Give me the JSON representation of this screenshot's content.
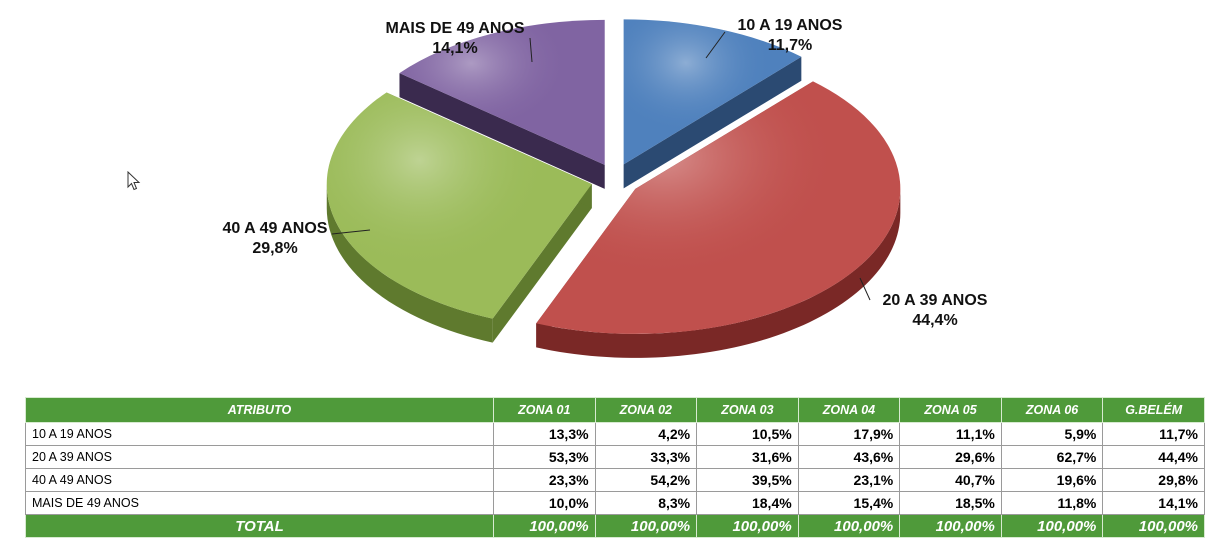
{
  "chart_data": {
    "type": "pie",
    "title": "",
    "slices": [
      {
        "label": "10 A 19 ANOS",
        "value": 11.7,
        "value_label": "11,7%",
        "color": "#4f81bd",
        "side": "#2b4a72"
      },
      {
        "label": "20 A 39 ANOS",
        "value": 44.4,
        "value_label": "44,4%",
        "color": "#c0504d",
        "side": "#7a2826"
      },
      {
        "label": "40 A 49 ANOS",
        "value": 29.8,
        "value_label": "29,8%",
        "color": "#9bbb59",
        "side": "#5f7a2e"
      },
      {
        "label": "MAIS DE 49 ANOS",
        "value": 14.1,
        "value_label": "14,1%",
        "color": "#8064a2",
        "side": "#3a2a4e"
      }
    ]
  },
  "table": {
    "headers": [
      "ATRIBUTO",
      "ZONA 01",
      "ZONA 02",
      "ZONA 03",
      "ZONA 04",
      "ZONA 05",
      "ZONA 06",
      "G.BELÉM"
    ],
    "rows": [
      {
        "label": "10 A 19 ANOS",
        "values": [
          "13,3%",
          "4,2%",
          "10,5%",
          "17,9%",
          "11,1%",
          "5,9%",
          "11,7%"
        ]
      },
      {
        "label": "20 A 39 ANOS",
        "values": [
          "53,3%",
          "33,3%",
          "31,6%",
          "43,6%",
          "29,6%",
          "62,7%",
          "44,4%"
        ]
      },
      {
        "label": "40 A 49 ANOS",
        "values": [
          "23,3%",
          "54,2%",
          "39,5%",
          "23,1%",
          "40,7%",
          "19,6%",
          "29,8%"
        ]
      },
      {
        "label": "MAIS DE 49 ANOS",
        "values": [
          "10,0%",
          "8,3%",
          "18,4%",
          "15,4%",
          "18,5%",
          "11,8%",
          "14,1%"
        ]
      }
    ],
    "total": {
      "label": "TOTAL",
      "values": [
        "100,00%",
        "100,00%",
        "100,00%",
        "100,00%",
        "100,00%",
        "100,00%",
        "100,00%"
      ]
    }
  },
  "colors": {
    "header_bg": "#4f9a3a",
    "header_text": "#ffffff"
  },
  "icons": {
    "cursor": "mouse-pointer-icon"
  }
}
